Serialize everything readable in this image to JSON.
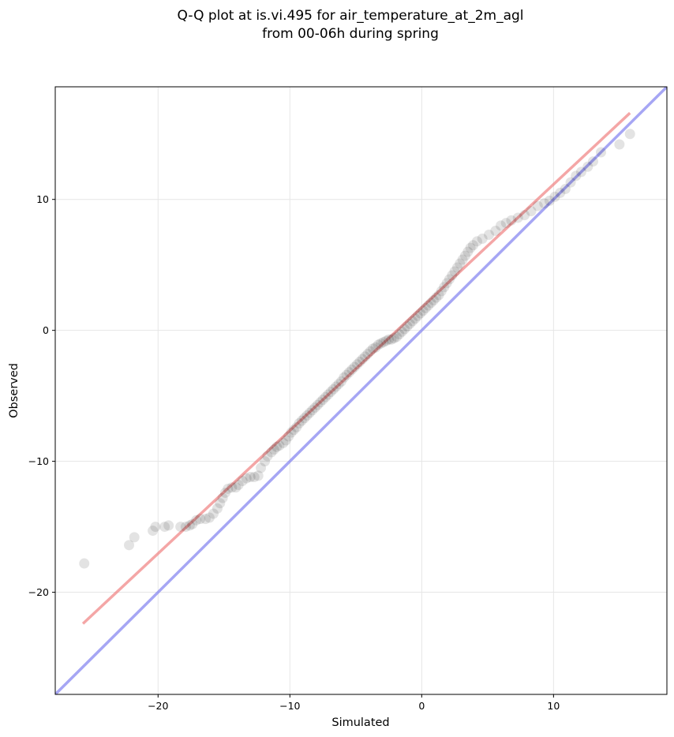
{
  "chart_data": {
    "type": "scatter",
    "title_line1": "Q-Q plot at is.vi.495 for air_temperature_at_2m_agl",
    "title_line2": "from 00-06h during spring",
    "xlabel": "Simulated",
    "ylabel": "Observed",
    "xlim": [
      -27.8,
      18.6
    ],
    "ylim": [
      -27.8,
      18.6
    ],
    "xticks": [
      -20,
      -10,
      0,
      10
    ],
    "yticks": [
      -20,
      -10,
      0,
      10
    ],
    "xtick_labels": [
      "−20",
      "−10",
      "0",
      "10"
    ],
    "ytick_labels": [
      "−20",
      "−10",
      "0",
      "10"
    ],
    "grid": true,
    "points_color": "#000000",
    "fit_line": {
      "color": "#f08080",
      "x": [
        -25.7,
        15.8
      ],
      "y": [
        -22.4,
        16.6
      ]
    },
    "identity_line": {
      "color": "#8080f0",
      "x": [
        -27.8,
        18.6
      ],
      "y": [
        -27.8,
        18.6
      ]
    },
    "series": [
      {
        "values": [
          [
            -25.6,
            -17.8
          ],
          [
            -22.2,
            -16.4
          ],
          [
            -21.8,
            -15.8
          ],
          [
            -20.4,
            -15.3
          ],
          [
            -20.2,
            -15.0
          ],
          [
            -19.5,
            -15.0
          ],
          [
            -19.2,
            -14.9
          ],
          [
            -18.3,
            -15.0
          ],
          [
            -17.9,
            -15.0
          ],
          [
            -17.6,
            -14.9
          ],
          [
            -17.4,
            -14.8
          ],
          [
            -17.1,
            -14.5
          ],
          [
            -16.8,
            -14.4
          ],
          [
            -16.4,
            -14.4
          ],
          [
            -16.1,
            -14.3
          ],
          [
            -15.8,
            -14.0
          ],
          [
            -15.5,
            -13.6
          ],
          [
            -15.3,
            -13.2
          ],
          [
            -15.1,
            -12.8
          ],
          [
            -14.9,
            -12.4
          ],
          [
            -14.7,
            -12.1
          ],
          [
            -14.4,
            -12.0
          ],
          [
            -14.1,
            -12.0
          ],
          [
            -13.9,
            -11.8
          ],
          [
            -13.6,
            -11.5
          ],
          [
            -13.3,
            -11.3
          ],
          [
            -13.0,
            -11.2
          ],
          [
            -12.7,
            -11.2
          ],
          [
            -12.4,
            -11.1
          ],
          [
            -12.2,
            -10.5
          ],
          [
            -11.9,
            -10.0
          ],
          [
            -11.7,
            -9.6
          ],
          [
            -11.4,
            -9.3
          ],
          [
            -11.2,
            -9.1
          ],
          [
            -11.0,
            -8.9
          ],
          [
            -10.8,
            -8.8
          ],
          [
            -10.5,
            -8.6
          ],
          [
            -10.3,
            -8.4
          ],
          [
            -10.1,
            -8.1
          ],
          [
            -9.9,
            -7.8
          ],
          [
            -9.7,
            -7.6
          ],
          [
            -9.5,
            -7.4
          ],
          [
            -9.3,
            -7.1
          ],
          [
            -9.1,
            -6.9
          ],
          [
            -8.9,
            -6.7
          ],
          [
            -8.7,
            -6.5
          ],
          [
            -8.5,
            -6.3
          ],
          [
            -8.3,
            -6.1
          ],
          [
            -8.1,
            -5.9
          ],
          [
            -7.9,
            -5.7
          ],
          [
            -7.7,
            -5.5
          ],
          [
            -7.5,
            -5.3
          ],
          [
            -7.3,
            -5.1
          ],
          [
            -7.1,
            -4.9
          ],
          [
            -6.9,
            -4.7
          ],
          [
            -6.7,
            -4.5
          ],
          [
            -6.5,
            -4.3
          ],
          [
            -6.3,
            -4.1
          ],
          [
            -6.1,
            -3.9
          ],
          [
            -5.9,
            -3.6
          ],
          [
            -5.7,
            -3.4
          ],
          [
            -5.5,
            -3.2
          ],
          [
            -5.3,
            -3.0
          ],
          [
            -5.1,
            -2.8
          ],
          [
            -4.9,
            -2.6
          ],
          [
            -4.7,
            -2.4
          ],
          [
            -4.5,
            -2.2
          ],
          [
            -4.3,
            -2.0
          ],
          [
            -4.1,
            -1.8
          ],
          [
            -3.9,
            -1.6
          ],
          [
            -3.7,
            -1.4
          ],
          [
            -3.5,
            -1.3
          ],
          [
            -3.3,
            -1.1
          ],
          [
            -3.1,
            -1.0
          ],
          [
            -2.9,
            -0.9
          ],
          [
            -2.7,
            -0.8
          ],
          [
            -2.5,
            -0.7
          ],
          [
            -2.3,
            -0.7
          ],
          [
            -2.1,
            -0.6
          ],
          [
            -1.9,
            -0.5
          ],
          [
            -1.7,
            -0.3
          ],
          [
            -1.5,
            -0.1
          ],
          [
            -1.3,
            0.1
          ],
          [
            -1.1,
            0.3
          ],
          [
            -0.9,
            0.5
          ],
          [
            -0.7,
            0.7
          ],
          [
            -0.5,
            0.9
          ],
          [
            -0.3,
            1.1
          ],
          [
            -0.1,
            1.3
          ],
          [
            0.1,
            1.5
          ],
          [
            0.3,
            1.7
          ],
          [
            0.5,
            1.9
          ],
          [
            0.7,
            2.1
          ],
          [
            0.9,
            2.3
          ],
          [
            1.1,
            2.5
          ],
          [
            1.3,
            2.7
          ],
          [
            1.5,
            3.0
          ],
          [
            1.7,
            3.3
          ],
          [
            1.9,
            3.6
          ],
          [
            2.1,
            3.9
          ],
          [
            2.3,
            4.2
          ],
          [
            2.5,
            4.5
          ],
          [
            2.7,
            4.8
          ],
          [
            2.9,
            5.1
          ],
          [
            3.1,
            5.4
          ],
          [
            3.3,
            5.7
          ],
          [
            3.5,
            6.0
          ],
          [
            3.7,
            6.3
          ],
          [
            3.9,
            6.5
          ],
          [
            4.2,
            6.8
          ],
          [
            4.6,
            7.0
          ],
          [
            5.1,
            7.3
          ],
          [
            5.6,
            7.6
          ],
          [
            6.0,
            8.0
          ],
          [
            6.4,
            8.2
          ],
          [
            6.8,
            8.4
          ],
          [
            7.3,
            8.6
          ],
          [
            7.8,
            8.8
          ],
          [
            8.3,
            9.1
          ],
          [
            8.8,
            9.5
          ],
          [
            9.3,
            9.7
          ],
          [
            9.7,
            9.9
          ],
          [
            10.1,
            10.2
          ],
          [
            10.5,
            10.5
          ],
          [
            10.9,
            10.8
          ],
          [
            11.3,
            11.3
          ],
          [
            11.7,
            11.8
          ],
          [
            12.1,
            12.1
          ],
          [
            12.6,
            12.5
          ],
          [
            13.0,
            12.9
          ],
          [
            13.6,
            13.6
          ],
          [
            15.0,
            14.2
          ],
          [
            15.8,
            15.0
          ]
        ]
      }
    ]
  }
}
